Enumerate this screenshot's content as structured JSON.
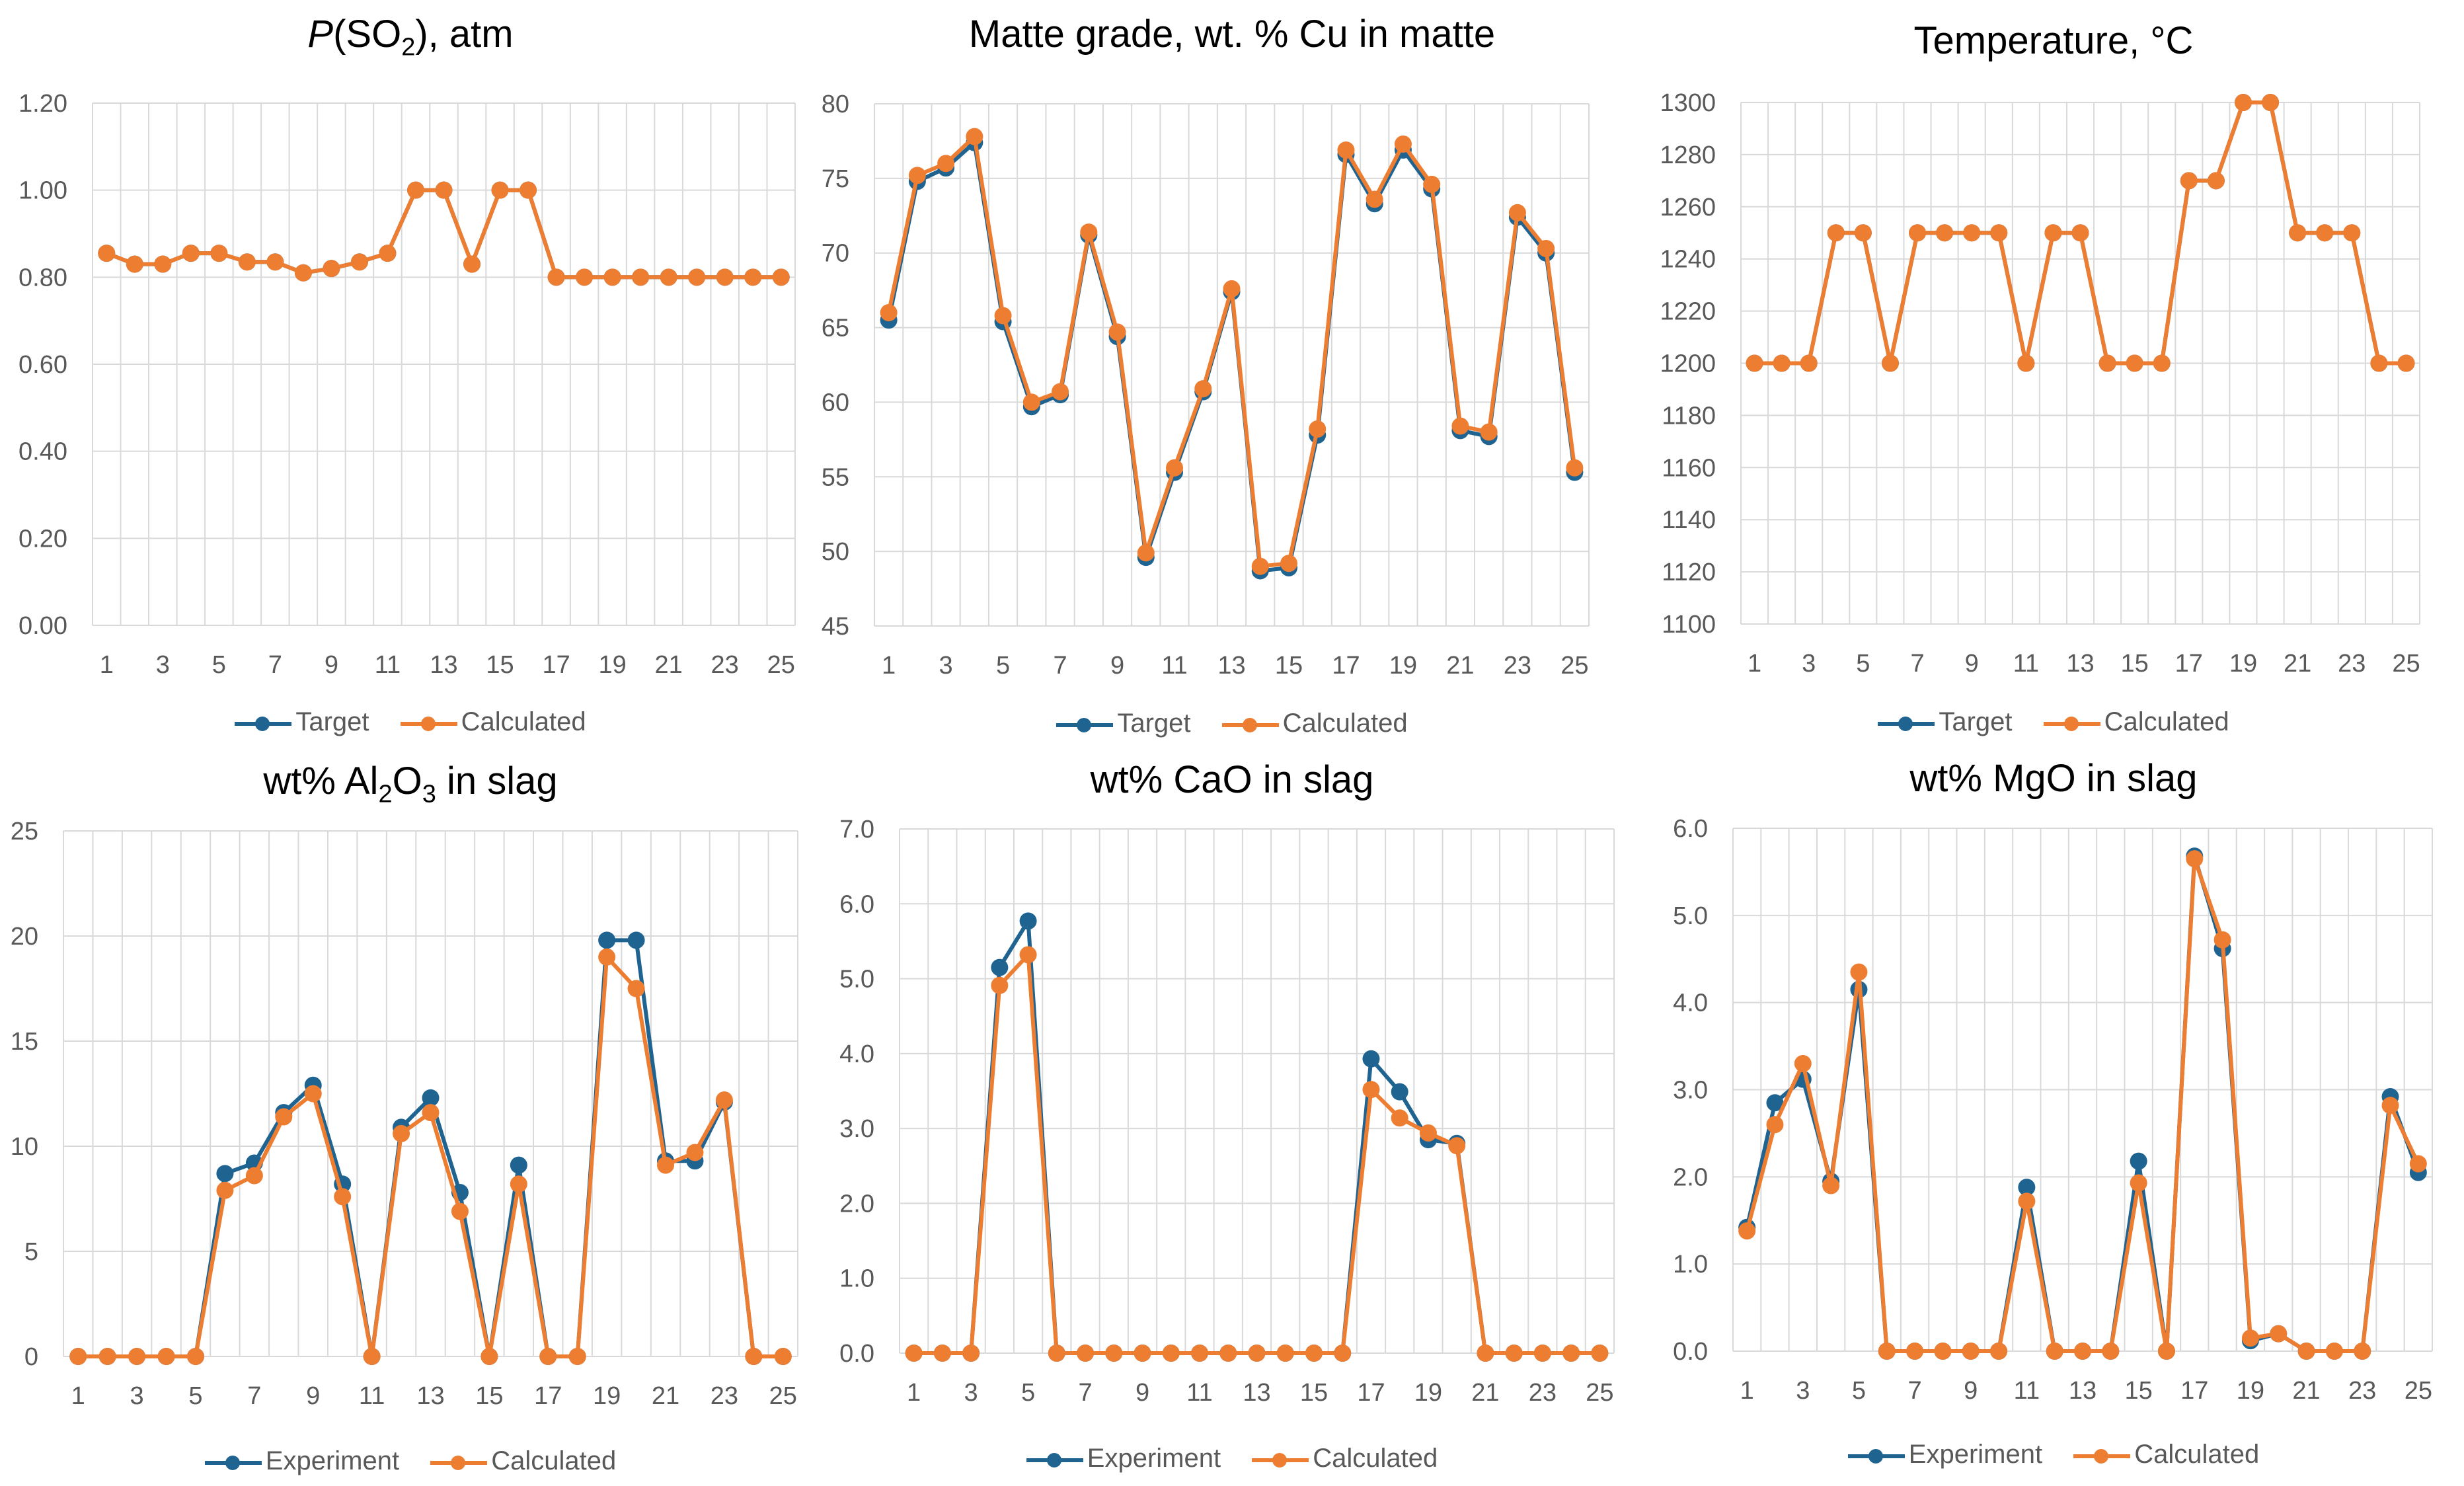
{
  "colors": {
    "series_a": "#1f6391",
    "series_b": "#ed7d31",
    "grid": "#d9d9d9",
    "tick": "#595959"
  },
  "chart_data": [
    {
      "type": "line",
      "title_parts": [
        "P",
        "(SO",
        "2",
        "), atm"
      ],
      "x": [
        1,
        2,
        3,
        4,
        5,
        6,
        7,
        8,
        9,
        10,
        11,
        12,
        13,
        14,
        15,
        16,
        17,
        18,
        19,
        20,
        21,
        22,
        23,
        24,
        25
      ],
      "x_tick_labels": [
        "1",
        "3",
        "5",
        "7",
        "9",
        "11",
        "13",
        "15",
        "17",
        "19",
        "21",
        "23",
        "25"
      ],
      "y_tick_labels": [
        "0.00",
        "0.20",
        "0.40",
        "0.60",
        "0.80",
        "1.00",
        "1.20"
      ],
      "ylim": [
        0,
        1.2
      ],
      "grid": "both",
      "legend": "bottom",
      "series": [
        {
          "name": "Target",
          "values": [
            0.855,
            0.83,
            0.83,
            0.855,
            0.855,
            0.835,
            0.835,
            0.81,
            0.82,
            0.835,
            0.855,
            1.0,
            1.0,
            0.83,
            1.0,
            1.0,
            0.8,
            0.8,
            0.8,
            0.8,
            0.8,
            0.8,
            0.8,
            0.8,
            0.8
          ]
        },
        {
          "name": "Calculated",
          "values": [
            0.855,
            0.83,
            0.83,
            0.855,
            0.855,
            0.835,
            0.835,
            0.81,
            0.82,
            0.835,
            0.855,
            1.0,
            1.0,
            0.83,
            1.0,
            1.0,
            0.8,
            0.8,
            0.8,
            0.8,
            0.8,
            0.8,
            0.8,
            0.8,
            0.8
          ]
        }
      ]
    },
    {
      "type": "line",
      "title": "Matte grade, wt. % Cu in matte",
      "x": [
        1,
        2,
        3,
        4,
        5,
        6,
        7,
        8,
        9,
        10,
        11,
        12,
        13,
        14,
        15,
        16,
        17,
        18,
        19,
        20,
        21,
        22,
        23,
        24,
        25
      ],
      "x_tick_labels": [
        "1",
        "3",
        "5",
        "7",
        "9",
        "11",
        "13",
        "15",
        "17",
        "19",
        "21",
        "23",
        "25"
      ],
      "y_tick_labels": [
        "45",
        "50",
        "55",
        "60",
        "65",
        "70",
        "75",
        "80"
      ],
      "ylim": [
        45,
        80
      ],
      "grid": "both",
      "legend": "bottom",
      "series": [
        {
          "name": "Target",
          "values": [
            65.5,
            74.8,
            75.7,
            77.4,
            65.4,
            59.7,
            60.5,
            71.2,
            64.4,
            49.6,
            55.3,
            60.7,
            67.4,
            48.7,
            48.9,
            57.8,
            76.6,
            73.3,
            76.9,
            74.3,
            58.1,
            57.7,
            72.4,
            70.0,
            55.3
          ]
        },
        {
          "name": "Calculated",
          "values": [
            66.0,
            75.2,
            76.0,
            77.8,
            65.8,
            60.0,
            60.7,
            71.4,
            64.7,
            49.9,
            55.6,
            60.9,
            67.6,
            49.0,
            49.2,
            58.2,
            76.9,
            73.6,
            77.3,
            74.6,
            58.4,
            58.0,
            72.7,
            70.3,
            55.6
          ]
        }
      ]
    },
    {
      "type": "line",
      "title": "Temperature, °C",
      "x": [
        1,
        2,
        3,
        4,
        5,
        6,
        7,
        8,
        9,
        10,
        11,
        12,
        13,
        14,
        15,
        16,
        17,
        18,
        19,
        20,
        21,
        22,
        23,
        24,
        25
      ],
      "x_tick_labels": [
        "1",
        "3",
        "5",
        "7",
        "9",
        "11",
        "13",
        "15",
        "17",
        "19",
        "21",
        "23",
        "25"
      ],
      "y_tick_labels": [
        "1100",
        "1120",
        "1140",
        "1160",
        "1180",
        "1200",
        "1220",
        "1240",
        "1260",
        "1280",
        "1300"
      ],
      "ylim": [
        1100,
        1300
      ],
      "grid": "both",
      "legend": "bottom",
      "series": [
        {
          "name": "Target",
          "values": [
            1200,
            1200,
            1200,
            1250,
            1250,
            1200,
            1250,
            1250,
            1250,
            1250,
            1200,
            1250,
            1250,
            1200,
            1200,
            1200,
            1270,
            1270,
            1300,
            1300,
            1250,
            1250,
            1250,
            1200,
            1200
          ]
        },
        {
          "name": "Calculated",
          "values": [
            1200,
            1200,
            1200,
            1250,
            1250,
            1200,
            1250,
            1250,
            1250,
            1250,
            1200,
            1250,
            1250,
            1200,
            1200,
            1200,
            1270,
            1270,
            1300,
            1300,
            1250,
            1250,
            1250,
            1200,
            1200
          ]
        }
      ]
    },
    {
      "type": "line",
      "title_parts": [
        "wt% Al",
        "2",
        "O",
        "3",
        " in slag"
      ],
      "x": [
        1,
        2,
        3,
        4,
        5,
        6,
        7,
        8,
        9,
        10,
        11,
        12,
        13,
        14,
        15,
        16,
        17,
        18,
        19,
        20,
        21,
        22,
        23,
        24,
        25
      ],
      "x_tick_labels": [
        "1",
        "3",
        "5",
        "7",
        "9",
        "11",
        "13",
        "15",
        "17",
        "19",
        "21",
        "23",
        "25"
      ],
      "y_tick_labels": [
        "0",
        "5",
        "10",
        "15",
        "20",
        "25"
      ],
      "ylim": [
        0,
        25
      ],
      "grid": "both",
      "legend": "bottom",
      "series": [
        {
          "name": "Experiment",
          "values": [
            0,
            0,
            0,
            0,
            0,
            8.7,
            9.2,
            11.6,
            12.9,
            8.2,
            0,
            10.9,
            12.3,
            7.8,
            0,
            9.1,
            0,
            0,
            19.8,
            19.8,
            9.3,
            9.3,
            12.1,
            0,
            0
          ]
        },
        {
          "name": "Calculated",
          "values": [
            0,
            0,
            0,
            0,
            0,
            7.9,
            8.6,
            11.4,
            12.5,
            7.6,
            0,
            10.6,
            11.6,
            6.9,
            0,
            8.2,
            0,
            0,
            19.0,
            17.5,
            9.1,
            9.7,
            12.2,
            0,
            0
          ]
        }
      ]
    },
    {
      "type": "line",
      "title": "wt% CaO in slag",
      "x": [
        1,
        2,
        3,
        4,
        5,
        6,
        7,
        8,
        9,
        10,
        11,
        12,
        13,
        14,
        15,
        16,
        17,
        18,
        19,
        20,
        21,
        22,
        23,
        24,
        25
      ],
      "x_tick_labels": [
        "1",
        "3",
        "5",
        "7",
        "9",
        "11",
        "13",
        "15",
        "17",
        "19",
        "21",
        "23",
        "25"
      ],
      "y_tick_labels": [
        "0.0",
        "1.0",
        "2.0",
        "3.0",
        "4.0",
        "5.0",
        "6.0",
        "7.0"
      ],
      "ylim": [
        0,
        7
      ],
      "grid": "both",
      "legend": "bottom",
      "series": [
        {
          "name": "Experiment",
          "values": [
            0,
            0,
            0,
            5.15,
            5.77,
            0,
            0,
            0,
            0,
            0,
            0,
            0,
            0,
            0,
            0,
            0,
            3.93,
            3.49,
            2.85,
            2.8,
            0,
            0,
            0,
            0,
            0
          ]
        },
        {
          "name": "Calculated",
          "values": [
            0,
            0,
            0,
            4.91,
            5.32,
            0,
            0,
            0,
            0,
            0,
            0,
            0,
            0,
            0,
            0,
            0,
            3.52,
            3.14,
            2.94,
            2.77,
            0,
            0,
            0,
            0,
            0
          ]
        }
      ]
    },
    {
      "type": "line",
      "title": "wt% MgO in slag",
      "x": [
        1,
        2,
        3,
        4,
        5,
        6,
        7,
        8,
        9,
        10,
        11,
        12,
        13,
        14,
        15,
        16,
        17,
        18,
        19,
        20,
        21,
        22,
        23,
        24,
        25
      ],
      "x_tick_labels": [
        "1",
        "3",
        "5",
        "7",
        "9",
        "11",
        "13",
        "15",
        "17",
        "19",
        "21",
        "23",
        "25"
      ],
      "y_tick_labels": [
        "0.0",
        "1.0",
        "2.0",
        "3.0",
        "4.0",
        "5.0",
        "6.0"
      ],
      "ylim": [
        0,
        6
      ],
      "grid": "both",
      "legend": "bottom",
      "series": [
        {
          "name": "Experiment",
          "values": [
            1.42,
            2.85,
            3.12,
            1.95,
            4.15,
            0,
            0,
            0,
            0,
            0,
            1.88,
            0,
            0,
            0,
            2.18,
            0,
            5.68,
            4.62,
            0.12,
            0.2,
            0,
            0,
            0,
            2.92,
            2.05
          ]
        },
        {
          "name": "Calculated",
          "values": [
            1.38,
            2.6,
            3.3,
            1.9,
            4.35,
            0,
            0,
            0,
            0,
            0,
            1.72,
            0,
            0,
            0,
            1.93,
            0,
            5.65,
            4.72,
            0.15,
            0.2,
            0,
            0,
            0,
            2.82,
            2.15
          ]
        }
      ]
    }
  ]
}
